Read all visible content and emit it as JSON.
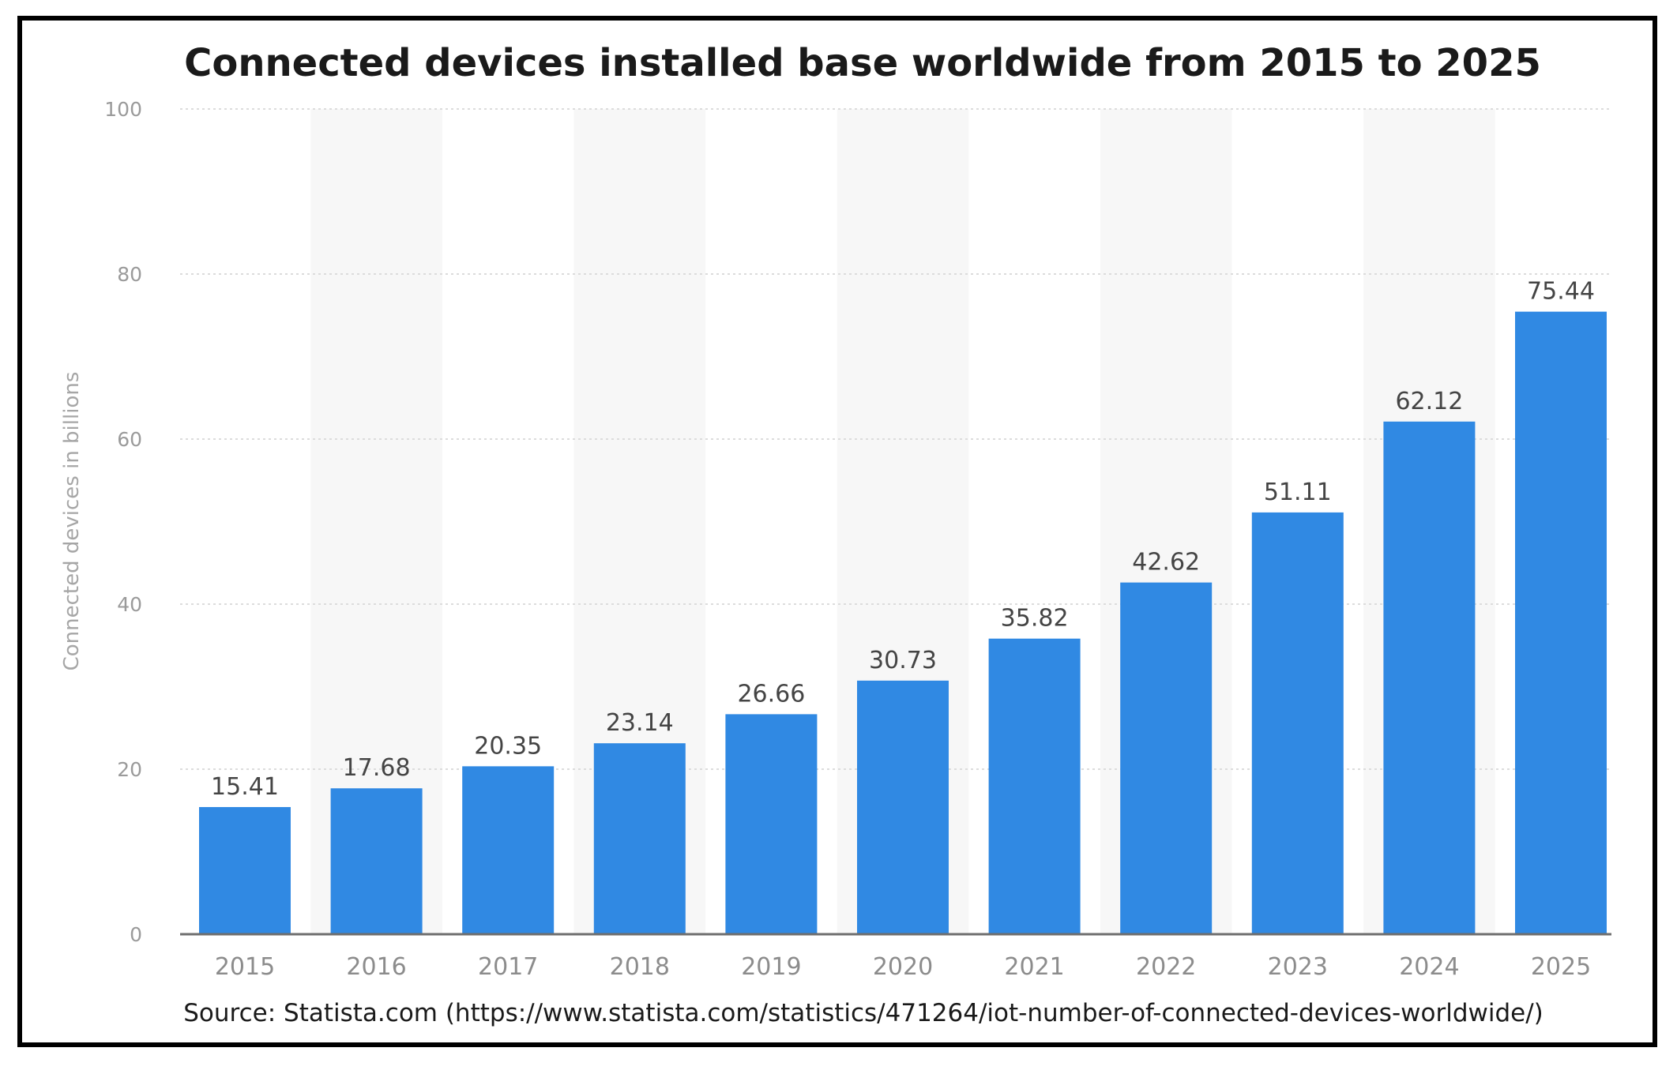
{
  "chart_data": {
    "type": "bar",
    "title": "Connected devices installed base worldwide from 2015 to 2025",
    "ylabel": "Connected devices in billions",
    "xlabel": "",
    "categories": [
      "2015",
      "2016",
      "2017",
      "2018",
      "2019",
      "2020",
      "2021",
      "2022",
      "2023",
      "2024",
      "2025"
    ],
    "values": [
      15.41,
      17.68,
      20.35,
      23.14,
      26.66,
      30.73,
      35.82,
      42.62,
      51.11,
      62.12,
      75.44
    ],
    "ylim": [
      0,
      100
    ],
    "yticks": [
      0,
      20,
      40,
      60,
      80,
      100
    ],
    "grid": true,
    "bar_color": "#3089e3",
    "source": "Source: Statista.com (https://www.statista.com/statistics/471264/iot-number-of-connected-devices-worldwide/)"
  }
}
